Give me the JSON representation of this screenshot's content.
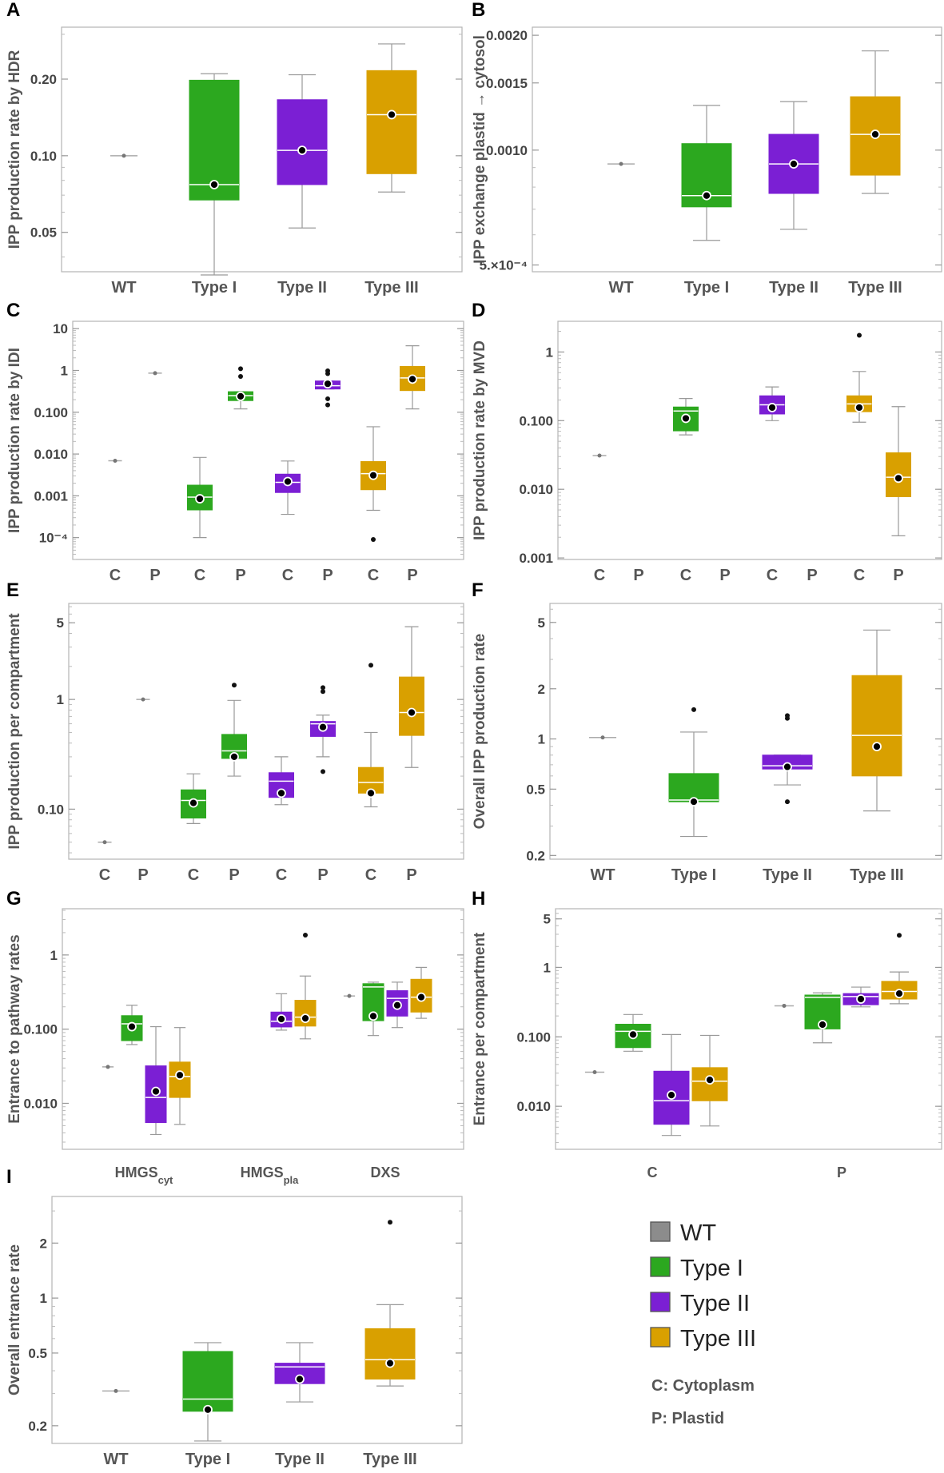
{
  "colors": {
    "WT": "#8c8c8c",
    "Type I": "#2ca81f",
    "Type II": "#7b1fd4",
    "Type III": "#d9a000"
  },
  "legend": {
    "items": [
      {
        "label": "WT",
        "color": "#8c8c8c"
      },
      {
        "label": "Type I",
        "color": "#2ca81f"
      },
      {
        "label": "Type II",
        "color": "#7b1fd4"
      },
      {
        "label": "Type III",
        "color": "#d9a000"
      }
    ],
    "notes": [
      "C: Cytoplasm",
      "P: Plastid"
    ]
  },
  "chart_data": [
    {
      "id": "A",
      "panel_label": "A",
      "type": "box",
      "scale": "log",
      "ylabel": "IPP production rate by HDR",
      "ylim": [
        0.035,
        0.32
      ],
      "yticks": [
        {
          "v": 0.05,
          "label": "0.05"
        },
        {
          "v": 0.1,
          "label": "0.10"
        },
        {
          "v": 0.2,
          "label": "0.20"
        }
      ],
      "xcategories": [
        "WT",
        "Type I",
        "Type II",
        "Type III"
      ],
      "boxes": [
        {
          "group": "WT",
          "min": 0.1,
          "q1": 0.1,
          "median": 0.1,
          "q3": 0.1,
          "max": 0.1,
          "mean": 0.1
        },
        {
          "group": "Type I",
          "min": 0.034,
          "q1": 0.067,
          "median": 0.077,
          "q3": 0.198,
          "max": 0.21,
          "mean": 0.077
        },
        {
          "group": "Type II",
          "min": 0.052,
          "q1": 0.077,
          "median": 0.105,
          "q3": 0.166,
          "max": 0.208,
          "mean": 0.105
        },
        {
          "group": "Type III",
          "min": 0.072,
          "q1": 0.085,
          "median": 0.145,
          "q3": 0.216,
          "max": 0.275,
          "mean": 0.145
        }
      ]
    },
    {
      "id": "B",
      "panel_label": "B",
      "type": "box",
      "scale": "log",
      "ylabel": "IPP exchange plastid → cytosol",
      "ylim": [
        0.00048,
        0.0021
      ],
      "yticks": [
        {
          "v": 0.0005,
          "label": "5.×10⁻⁴"
        },
        {
          "v": 0.001,
          "label": "0.0010"
        },
        {
          "v": 0.0015,
          "label": "0.0015"
        },
        {
          "v": 0.002,
          "label": "0.0020"
        }
      ],
      "xcategories": [
        "WT",
        "Type I",
        "Type II",
        "Type III"
      ],
      "boxes": [
        {
          "group": "WT",
          "min": 0.00092,
          "q1": 0.00092,
          "median": 0.00092,
          "q3": 0.00092,
          "max": 0.00092,
          "mean": 0.00092
        },
        {
          "group": "Type I",
          "min": 0.00058,
          "q1": 0.00071,
          "median": 0.00076,
          "q3": 0.00104,
          "max": 0.00131,
          "mean": 0.00076
        },
        {
          "group": "Type II",
          "min": 0.00062,
          "q1": 0.00077,
          "median": 0.00092,
          "q3": 0.0011,
          "max": 0.00134,
          "mean": 0.00092
        },
        {
          "group": "Type III",
          "min": 0.00077,
          "q1": 0.00086,
          "median": 0.0011,
          "q3": 0.00138,
          "max": 0.00182,
          "mean": 0.0011
        }
      ]
    },
    {
      "id": "C",
      "panel_label": "C",
      "type": "box",
      "scale": "log",
      "ylabel": "IPP production rate by IDI",
      "ylim": [
        3e-05,
        15
      ],
      "yticks": [
        {
          "v": 0.0001,
          "label": "10⁻⁴"
        },
        {
          "v": 0.001,
          "label": "0.001"
        },
        {
          "v": 0.01,
          "label": "0.010"
        },
        {
          "v": 0.1,
          "label": "0.100"
        },
        {
          "v": 1,
          "label": "1"
        },
        {
          "v": 10,
          "label": "10"
        }
      ],
      "xcategories": [
        "C",
        "P",
        "C",
        "P",
        "C",
        "P",
        "C",
        "P"
      ],
      "boxes": [
        {
          "group": "WT",
          "slot": 0,
          "min": 0.0069,
          "q1": 0.0069,
          "median": 0.0069,
          "q3": 0.0069,
          "max": 0.0069,
          "mean": 0.0069
        },
        {
          "group": "WT",
          "slot": 1,
          "min": 0.86,
          "q1": 0.86,
          "median": 0.86,
          "q3": 0.86,
          "max": 0.86,
          "mean": 0.86
        },
        {
          "group": "Type I",
          "slot": 2,
          "min": 0.0001,
          "q1": 0.00046,
          "median": 0.00093,
          "q3": 0.0018,
          "max": 0.0083,
          "mean": 0.00085
        },
        {
          "group": "Type I",
          "slot": 3,
          "min": 0.12,
          "q1": 0.19,
          "median": 0.25,
          "q3": 0.31,
          "max": 0.31,
          "mean": 0.24,
          "outliers": [
            0.72,
            1.1
          ]
        },
        {
          "group": "Type II",
          "slot": 4,
          "min": 0.00036,
          "q1": 0.0012,
          "median": 0.0021,
          "q3": 0.0033,
          "max": 0.0068,
          "mean": 0.0022
        },
        {
          "group": "Type II",
          "slot": 5,
          "min": 0.36,
          "q1": 0.36,
          "median": 0.43,
          "q3": 0.56,
          "max": 0.56,
          "mean": 0.48,
          "outliers": [
            0.15,
            0.21,
            0.84,
            0.98
          ]
        },
        {
          "group": "Type III",
          "slot": 6,
          "min": 0.00045,
          "q1": 0.0014,
          "median": 0.0034,
          "q3": 0.0066,
          "max": 0.045,
          "mean": 0.0031,
          "outliers": [
            9e-05
          ]
        },
        {
          "group": "Type III",
          "slot": 7,
          "min": 0.12,
          "q1": 0.33,
          "median": 0.66,
          "q3": 1.25,
          "max": 3.9,
          "mean": 0.62
        }
      ]
    },
    {
      "id": "D",
      "panel_label": "D",
      "type": "box",
      "scale": "log",
      "ylabel": "IPP production rate by MVD",
      "ylim": [
        0.00095,
        2.8
      ],
      "yticks": [
        {
          "v": 0.001,
          "label": "0.001"
        },
        {
          "v": 0.01,
          "label": "0.010"
        },
        {
          "v": 0.1,
          "label": "0.100"
        },
        {
          "v": 1,
          "label": "1"
        }
      ],
      "xcategories": [
        "C",
        "P",
        "C",
        "P",
        "C",
        "P",
        "C",
        "P"
      ],
      "boxes": [
        {
          "group": "WT",
          "slot": 0,
          "min": 0.031,
          "q1": 0.031,
          "median": 0.031,
          "q3": 0.031,
          "max": 0.031,
          "mean": 0.031
        },
        {
          "group": "Type I",
          "slot": 2,
          "min": 0.062,
          "q1": 0.071,
          "median": 0.138,
          "q3": 0.158,
          "max": 0.21,
          "mean": 0.108
        },
        {
          "group": "Type II",
          "slot": 4,
          "min": 0.1,
          "q1": 0.125,
          "median": 0.17,
          "q3": 0.23,
          "max": 0.31,
          "mean": 0.155
        },
        {
          "group": "Type III",
          "slot": 6,
          "min": 0.095,
          "q1": 0.135,
          "median": 0.175,
          "q3": 0.23,
          "max": 0.52,
          "mean": 0.155,
          "outliers": [
            1.75
          ]
        },
        {
          "group": "Type III",
          "slot": 7,
          "min": 0.0021,
          "q1": 0.0078,
          "median": 0.015,
          "q3": 0.034,
          "max": 0.16,
          "mean": 0.0145
        }
      ]
    },
    {
      "id": "E",
      "panel_label": "E",
      "type": "box",
      "scale": "log",
      "ylabel": "IPP production per compartment",
      "ylim": [
        0.035,
        7.5
      ],
      "yticks": [
        {
          "v": 0.1,
          "label": "0.10"
        },
        {
          "v": 1,
          "label": "1"
        },
        {
          "v": 5,
          "label": "5"
        }
      ],
      "xcategories": [
        "C",
        "P",
        "C",
        "P",
        "C",
        "P",
        "C",
        "P"
      ],
      "boxes": [
        {
          "group": "WT",
          "slot": 0,
          "min": 0.05,
          "q1": 0.05,
          "median": 0.05,
          "q3": 0.05,
          "max": 0.05,
          "mean": 0.05
        },
        {
          "group": "WT",
          "slot": 1,
          "min": 1.0,
          "q1": 1.0,
          "median": 1.0,
          "q3": 1.0,
          "max": 1.0,
          "mean": 1.0
        },
        {
          "group": "Type I",
          "slot": 2,
          "min": 0.074,
          "q1": 0.083,
          "median": 0.12,
          "q3": 0.15,
          "max": 0.21,
          "mean": 0.114
        },
        {
          "group": "Type I",
          "slot": 3,
          "min": 0.2,
          "q1": 0.29,
          "median": 0.34,
          "q3": 0.48,
          "max": 0.98,
          "mean": 0.3,
          "outliers": [
            1.35
          ]
        },
        {
          "group": "Type II",
          "slot": 4,
          "min": 0.11,
          "q1": 0.128,
          "median": 0.18,
          "q3": 0.215,
          "max": 0.3,
          "mean": 0.14
        },
        {
          "group": "Type II",
          "slot": 5,
          "min": 0.3,
          "q1": 0.46,
          "median": 0.6,
          "q3": 0.63,
          "max": 0.72,
          "mean": 0.56,
          "outliers": [
            0.22,
            1.18,
            1.28
          ]
        },
        {
          "group": "Type III",
          "slot": 6,
          "min": 0.105,
          "q1": 0.14,
          "median": 0.175,
          "q3": 0.24,
          "max": 0.5,
          "mean": 0.14,
          "outliers": [
            2.05
          ]
        },
        {
          "group": "Type III",
          "slot": 7,
          "min": 0.24,
          "q1": 0.47,
          "median": 0.76,
          "q3": 1.6,
          "max": 4.6,
          "mean": 0.76
        }
      ]
    },
    {
      "id": "F",
      "panel_label": "F",
      "type": "box",
      "scale": "log",
      "ylabel": "Overall IPP production rate",
      "ylim": [
        0.19,
        6.5
      ],
      "yticks": [
        {
          "v": 0.2,
          "label": "0.2"
        },
        {
          "v": 0.5,
          "label": "0.5"
        },
        {
          "v": 1,
          "label": "1"
        },
        {
          "v": 2,
          "label": "2"
        },
        {
          "v": 5,
          "label": "5"
        }
      ],
      "xcategories": [
        "WT",
        "Type I",
        "Type II",
        "Type III"
      ],
      "boxes": [
        {
          "group": "WT",
          "min": 1.02,
          "q1": 1.02,
          "median": 1.02,
          "q3": 1.02,
          "max": 1.02,
          "mean": 1.02
        },
        {
          "group": "Type I",
          "min": 0.26,
          "q1": 0.42,
          "median": 0.43,
          "q3": 0.62,
          "max": 1.1,
          "mean": 0.42,
          "outliers": [
            1.5
          ]
        },
        {
          "group": "Type II",
          "min": 0.53,
          "q1": 0.66,
          "median": 0.69,
          "q3": 0.8,
          "max": 0.8,
          "mean": 0.68,
          "outliers": [
            0.42,
            1.33,
            1.38
          ]
        },
        {
          "group": "Type III",
          "min": 0.37,
          "q1": 0.6,
          "median": 1.05,
          "q3": 2.4,
          "max": 4.5,
          "mean": 0.9
        }
      ]
    },
    {
      "id": "G",
      "panel_label": "G",
      "type": "box",
      "scale": "log",
      "ylabel": "Entrance to pathway rates",
      "ylim": [
        0.0024,
        4.2
      ],
      "yticks": [
        {
          "v": 0.01,
          "label": "0.010"
        },
        {
          "v": 0.1,
          "label": "0.100"
        },
        {
          "v": 1,
          "label": "1"
        }
      ],
      "xcategories": [
        {
          "main": "HMGS",
          "sub": "cyt"
        },
        {
          "main": "HMGS",
          "sub": "pla"
        },
        {
          "main": "DXS",
          "sub": ""
        }
      ],
      "boxes": [
        {
          "group": "WT",
          "cat": 0,
          "min": 0.031,
          "q1": 0.031,
          "median": 0.031,
          "q3": 0.031,
          "max": 0.031,
          "mean": 0.031
        },
        {
          "group": "Type I",
          "cat": 0,
          "min": 0.062,
          "q1": 0.07,
          "median": 0.118,
          "q3": 0.152,
          "max": 0.21,
          "mean": 0.108
        },
        {
          "group": "Type II",
          "cat": 0,
          "min": 0.0038,
          "q1": 0.0055,
          "median": 0.012,
          "q3": 0.032,
          "max": 0.108,
          "mean": 0.0145
        },
        {
          "group": "Type III",
          "cat": 0,
          "min": 0.0052,
          "q1": 0.012,
          "median": 0.023,
          "q3": 0.036,
          "max": 0.105,
          "mean": 0.024
        },
        {
          "group": "Type II",
          "cat": 1,
          "min": 0.097,
          "q1": 0.107,
          "median": 0.128,
          "q3": 0.17,
          "max": 0.3,
          "mean": 0.137
        },
        {
          "group": "Type III",
          "cat": 1,
          "min": 0.074,
          "q1": 0.11,
          "median": 0.145,
          "q3": 0.245,
          "max": 0.52,
          "mean": 0.14,
          "outliers": [
            1.85
          ]
        },
        {
          "group": "WT",
          "cat": 2,
          "min": 0.28,
          "q1": 0.28,
          "median": 0.28,
          "q3": 0.28,
          "max": 0.28,
          "mean": 0.28
        },
        {
          "group": "Type I",
          "cat": 2,
          "min": 0.082,
          "q1": 0.13,
          "median": 0.37,
          "q3": 0.41,
          "max": 0.43,
          "mean": 0.15
        },
        {
          "group": "Type II",
          "cat": 2,
          "min": 0.105,
          "q1": 0.15,
          "median": 0.26,
          "q3": 0.33,
          "max": 0.43,
          "mean": 0.21
        },
        {
          "group": "Type III",
          "cat": 2,
          "min": 0.14,
          "q1": 0.17,
          "median": 0.27,
          "q3": 0.47,
          "max": 0.68,
          "mean": 0.27
        }
      ]
    },
    {
      "id": "H",
      "panel_label": "H",
      "type": "box",
      "scale": "log",
      "ylabel": "Entrance per compartment",
      "ylim": [
        0.0024,
        7
      ],
      "yticks": [
        {
          "v": 0.01,
          "label": "0.010"
        },
        {
          "v": 0.1,
          "label": "0.100"
        },
        {
          "v": 1,
          "label": "1"
        },
        {
          "v": 5,
          "label": "5"
        }
      ],
      "xcategories": [
        {
          "main": "C",
          "sub": ""
        },
        {
          "main": "P",
          "sub": ""
        }
      ],
      "boxes": [
        {
          "group": "WT",
          "cat": 0,
          "min": 0.031,
          "q1": 0.031,
          "median": 0.031,
          "q3": 0.031,
          "max": 0.031,
          "mean": 0.031
        },
        {
          "group": "Type I",
          "cat": 0,
          "min": 0.062,
          "q1": 0.07,
          "median": 0.12,
          "q3": 0.152,
          "max": 0.21,
          "mean": 0.108
        },
        {
          "group": "Type II",
          "cat": 0,
          "min": 0.0038,
          "q1": 0.0055,
          "median": 0.012,
          "q3": 0.032,
          "max": 0.108,
          "mean": 0.0145
        },
        {
          "group": "Type III",
          "cat": 0,
          "min": 0.0052,
          "q1": 0.012,
          "median": 0.023,
          "q3": 0.036,
          "max": 0.105,
          "mean": 0.024
        },
        {
          "group": "WT",
          "cat": 1,
          "min": 0.28,
          "q1": 0.28,
          "median": 0.28,
          "q3": 0.28,
          "max": 0.28,
          "mean": 0.28
        },
        {
          "group": "Type I",
          "cat": 1,
          "min": 0.082,
          "q1": 0.13,
          "median": 0.37,
          "q3": 0.4,
          "max": 0.43,
          "mean": 0.15
        },
        {
          "group": "Type II",
          "cat": 1,
          "min": 0.27,
          "q1": 0.29,
          "median": 0.38,
          "q3": 0.42,
          "max": 0.52,
          "mean": 0.35
        },
        {
          "group": "Type III",
          "cat": 1,
          "min": 0.3,
          "q1": 0.35,
          "median": 0.45,
          "q3": 0.63,
          "max": 0.86,
          "mean": 0.42,
          "outliers": [
            2.9
          ]
        }
      ]
    },
    {
      "id": "I",
      "panel_label": "I",
      "type": "box",
      "scale": "log",
      "ylabel": "Overall entrance rate",
      "ylim": [
        0.16,
        3.6
      ],
      "yticks": [
        {
          "v": 0.2,
          "label": "0.2"
        },
        {
          "v": 0.5,
          "label": "0.5"
        },
        {
          "v": 1,
          "label": "1"
        },
        {
          "v": 2,
          "label": "2"
        }
      ],
      "xcategories": [
        "WT",
        "Type I",
        "Type II",
        "Type III"
      ],
      "boxes": [
        {
          "group": "WT",
          "min": 0.31,
          "q1": 0.31,
          "median": 0.31,
          "q3": 0.31,
          "max": 0.31,
          "mean": 0.31
        },
        {
          "group": "Type I",
          "min": 0.165,
          "q1": 0.24,
          "median": 0.28,
          "q3": 0.51,
          "max": 0.57,
          "mean": 0.245
        },
        {
          "group": "Type II",
          "min": 0.27,
          "q1": 0.34,
          "median": 0.42,
          "q3": 0.44,
          "max": 0.57,
          "mean": 0.36
        },
        {
          "group": "Type III",
          "min": 0.33,
          "q1": 0.36,
          "median": 0.46,
          "q3": 0.68,
          "max": 0.92,
          "mean": 0.44,
          "outliers": [
            2.6
          ]
        }
      ]
    }
  ]
}
